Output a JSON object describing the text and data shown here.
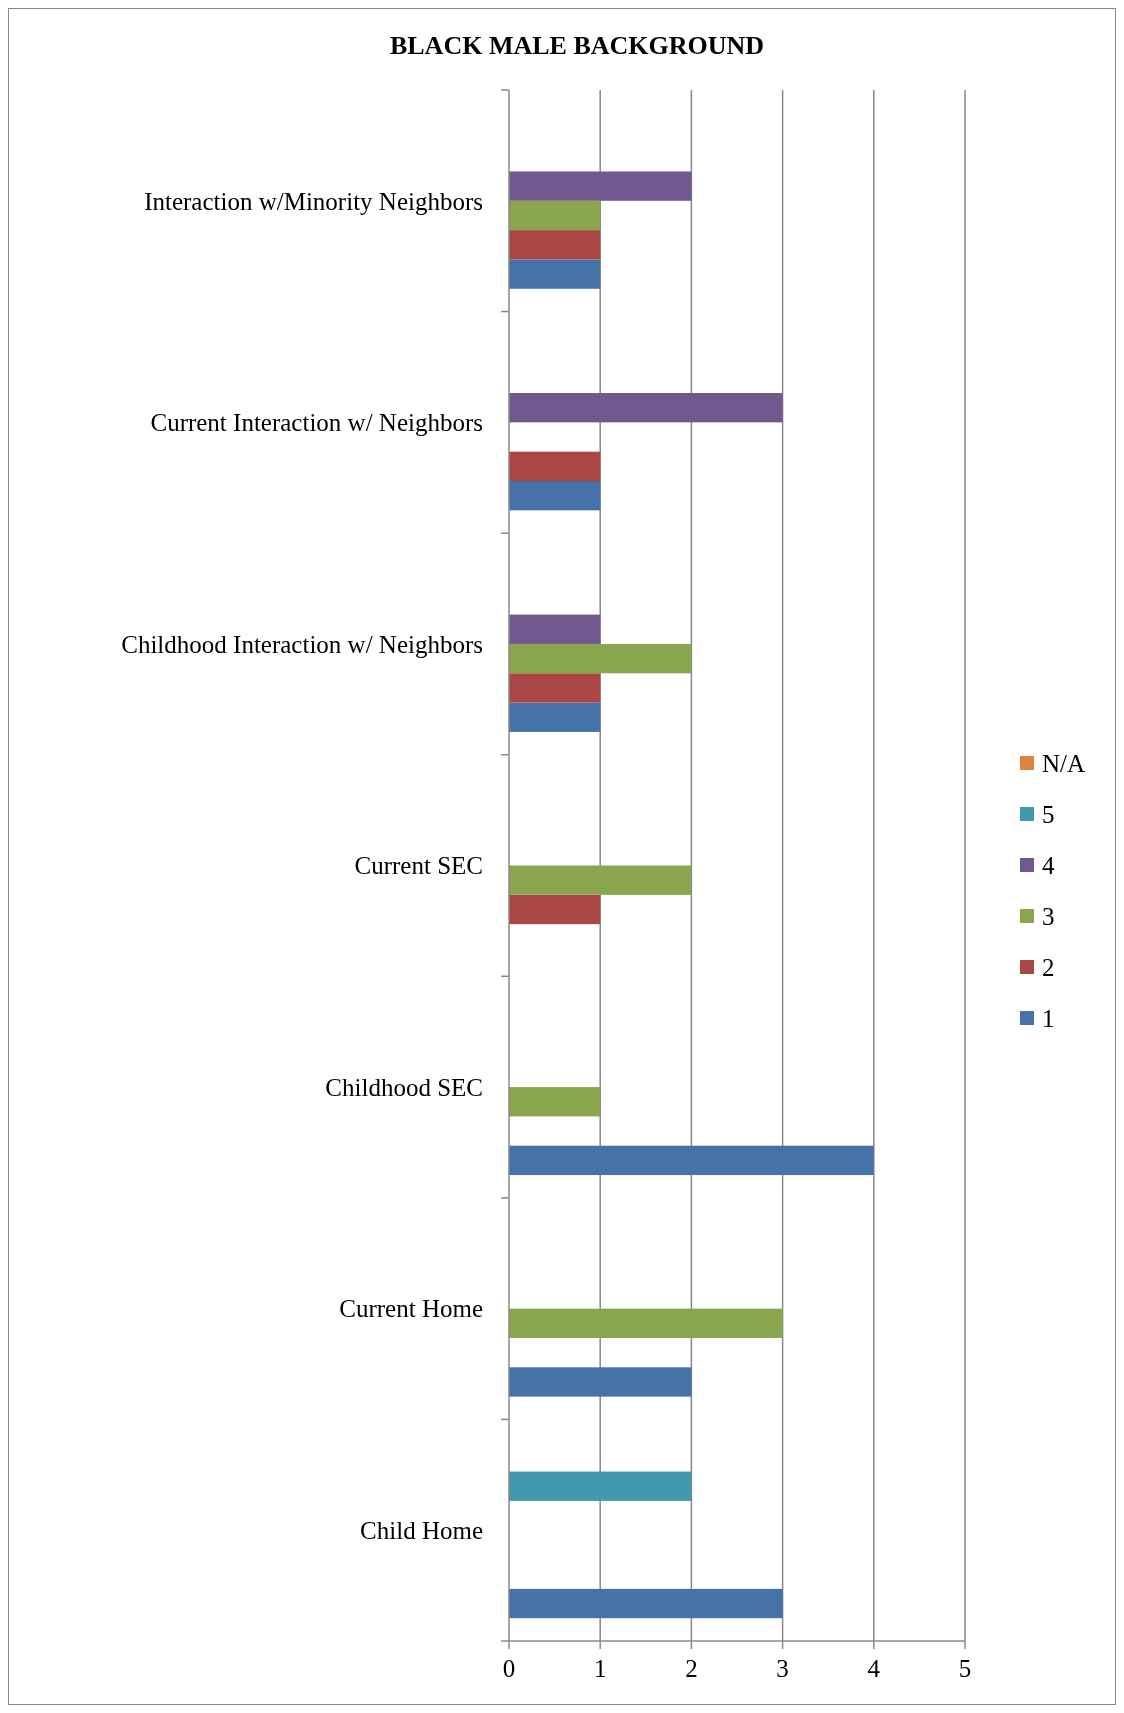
{
  "chart_data": {
    "type": "bar",
    "orientation": "horizontal",
    "title": "BLACK MALE BACKGROUND",
    "categories": [
      "Interaction w/Minority Neighbors",
      "Current Interaction w/ Neighbors",
      "Childhood Interaction w/ Neighbors",
      "Current SEC",
      "Childhood SEC",
      "Current Home",
      "Child Home"
    ],
    "series": [
      {
        "name": "1",
        "color": "#4572a7",
        "values": [
          1,
          1,
          1,
          null,
          4,
          2,
          3
        ]
      },
      {
        "name": "2",
        "color": "#aa4643",
        "values": [
          1,
          1,
          1,
          1,
          null,
          null,
          null
        ]
      },
      {
        "name": "3",
        "color": "#89a54e",
        "values": [
          1,
          null,
          2,
          2,
          1,
          3,
          null
        ]
      },
      {
        "name": "4",
        "color": "#71588f",
        "values": [
          2,
          3,
          1,
          null,
          null,
          null,
          null
        ]
      },
      {
        "name": "5",
        "color": "#4198af",
        "values": [
          null,
          null,
          null,
          null,
          null,
          null,
          2
        ]
      },
      {
        "name": "N/A",
        "color": "#db843d",
        "values": [
          null,
          null,
          null,
          null,
          null,
          null,
          null
        ]
      }
    ],
    "xlim": [
      0,
      5
    ],
    "xticks": [
      0,
      1,
      2,
      3,
      4,
      5
    ],
    "grid": "x",
    "legend": "right"
  }
}
